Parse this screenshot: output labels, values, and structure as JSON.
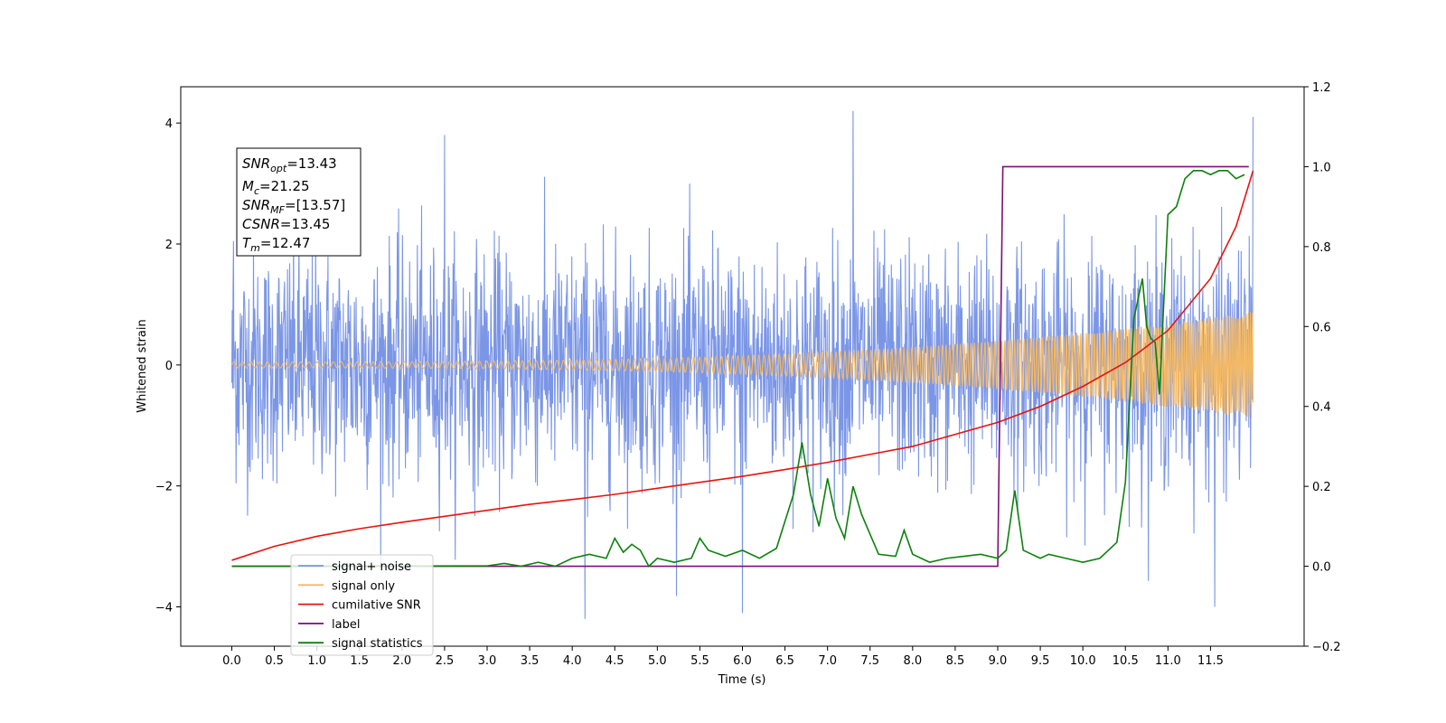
{
  "chart_data": {
    "type": "line",
    "xlabel": "Time (s)",
    "ylabel": "Whitened strain",
    "xlim": [
      -0.6,
      12.6
    ],
    "ylim": [
      -4.65,
      4.6
    ],
    "y2lim": [
      -0.2,
      1.2
    ],
    "x_ticks": [
      0.0,
      0.5,
      1.0,
      1.5,
      2.0,
      2.5,
      3.0,
      3.5,
      4.0,
      4.5,
      5.0,
      5.5,
      6.0,
      6.5,
      7.0,
      7.5,
      8.0,
      8.5,
      9.0,
      9.5,
      10.0,
      10.5,
      11.0,
      11.5
    ],
    "x_tick_labels": [
      "0.0",
      "0.5",
      "1.0",
      "1.5",
      "2.0",
      "2.5",
      "3.0",
      "3.5",
      "4.0",
      "4.5",
      "5.0",
      "5.5",
      "6.0",
      "6.5",
      "7.0",
      "7.5",
      "8.0",
      "8.5",
      "9.0",
      "9.5",
      "10.0",
      "10.5",
      "11.0",
      "11.5"
    ],
    "y_ticks": [
      -4,
      -2,
      0,
      2,
      4
    ],
    "y_tick_labels": [
      "−4",
      "−2",
      "0",
      "2",
      "4"
    ],
    "y2_ticks": [
      -0.2,
      0.0,
      0.2,
      0.4,
      0.6,
      0.8,
      1.0,
      1.2
    ],
    "y2_tick_labels": [
      "−0.2",
      "0.0",
      "0.2",
      "0.4",
      "0.6",
      "0.8",
      "1.0",
      "1.2"
    ],
    "grid": false,
    "legend_placement": "lower-left",
    "annotation": {
      "snr_opt": {
        "base": "SNR",
        "sub": "opt",
        "value": "=13.43"
      },
      "mc": {
        "base": "M",
        "sub": "c",
        "value": "=21.25"
      },
      "snr_mf": {
        "base": "SNR",
        "sub": "MF",
        "value": "=[13.57]"
      },
      "csnr": {
        "base": "CSNR",
        "value": "=13.45"
      },
      "tm": {
        "base": "T",
        "sub": "m",
        "value": "=12.47"
      }
    },
    "series": [
      {
        "name": "signal+ noise",
        "color": "#7b96e6",
        "axis": "left",
        "x_range": [
          0.0,
          12.0
        ],
        "noise_std": 0.95,
        "peak_examples": [
          [
            0.02,
            2.05
          ],
          [
            2.5,
            3.8
          ],
          [
            4.15,
            -4.2
          ],
          [
            6.0,
            -4.1
          ],
          [
            7.3,
            4.2
          ],
          [
            11.55,
            -4.0
          ],
          [
            12.0,
            4.1
          ]
        ]
      },
      {
        "name": "signal only",
        "color": "#f5b963",
        "axis": "left",
        "x_range": [
          0.0,
          12.0
        ],
        "amplitude_start": 0.05,
        "amplitude_end": 0.88
      },
      {
        "name": "cumilative SNR",
        "color": "#e8130d",
        "axis": "right",
        "x": [
          0.0,
          0.5,
          1.0,
          1.5,
          2.0,
          2.5,
          3.0,
          3.5,
          4.0,
          4.5,
          5.0,
          5.5,
          6.0,
          6.5,
          7.0,
          7.5,
          8.0,
          8.5,
          9.0,
          9.5,
          10.0,
          10.5,
          11.0,
          11.5,
          11.8,
          12.0
        ],
        "y": [
          0.015,
          0.05,
          0.075,
          0.094,
          0.11,
          0.125,
          0.14,
          0.155,
          0.167,
          0.18,
          0.195,
          0.21,
          0.225,
          0.242,
          0.26,
          0.28,
          0.3,
          0.33,
          0.36,
          0.4,
          0.45,
          0.51,
          0.59,
          0.72,
          0.85,
          0.99
        ]
      },
      {
        "name": "label",
        "color": "#7a0f7a",
        "axis": "right",
        "x": [
          0.0,
          9.0,
          9.06,
          11.95
        ],
        "y": [
          0.0,
          0.0,
          1.0,
          1.0
        ]
      },
      {
        "name": "signal statistics",
        "color": "#0d800d",
        "axis": "right",
        "x": [
          0.0,
          3.0,
          3.2,
          3.4,
          3.6,
          3.8,
          4.0,
          4.2,
          4.4,
          4.5,
          4.6,
          4.7,
          4.8,
          4.9,
          5.0,
          5.2,
          5.4,
          5.5,
          5.6,
          5.8,
          6.0,
          6.2,
          6.4,
          6.6,
          6.7,
          6.8,
          6.9,
          7.0,
          7.1,
          7.2,
          7.3,
          7.4,
          7.6,
          7.8,
          7.9,
          8.0,
          8.2,
          8.4,
          8.6,
          8.8,
          9.0,
          9.1,
          9.2,
          9.3,
          9.4,
          9.5,
          9.6,
          9.8,
          10.0,
          10.2,
          10.4,
          10.5,
          10.6,
          10.7,
          10.75,
          10.8,
          10.85,
          10.9,
          11.0,
          11.1,
          11.2,
          11.3,
          11.4,
          11.5,
          11.6,
          11.7,
          11.8,
          11.9
        ],
        "y": [
          0.0,
          0.001,
          0.007,
          0.0,
          0.01,
          0.0,
          0.02,
          0.03,
          0.02,
          0.07,
          0.035,
          0.055,
          0.04,
          0.0,
          0.02,
          0.01,
          0.02,
          0.07,
          0.04,
          0.025,
          0.04,
          0.02,
          0.045,
          0.18,
          0.31,
          0.18,
          0.1,
          0.22,
          0.12,
          0.07,
          0.2,
          0.13,
          0.03,
          0.025,
          0.09,
          0.03,
          0.01,
          0.02,
          0.025,
          0.03,
          0.02,
          0.04,
          0.19,
          0.04,
          0.03,
          0.02,
          0.03,
          0.02,
          0.01,
          0.02,
          0.06,
          0.21,
          0.62,
          0.72,
          0.6,
          0.57,
          0.56,
          0.43,
          0.88,
          0.9,
          0.97,
          0.99,
          0.99,
          0.98,
          0.99,
          0.99,
          0.97,
          0.98
        ]
      }
    ]
  }
}
